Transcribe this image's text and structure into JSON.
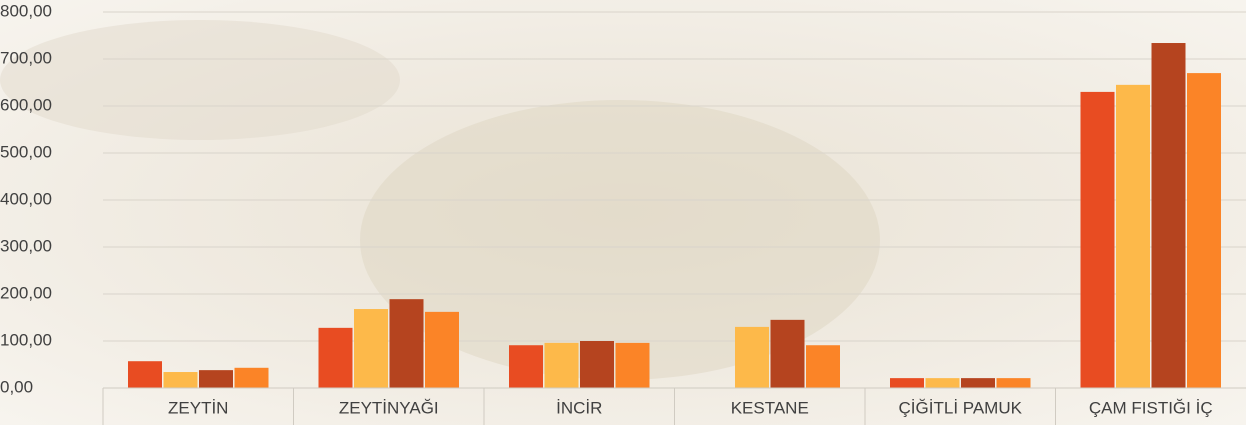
{
  "chart_data": {
    "type": "bar",
    "categories": [
      "ZEYTİN",
      "ZEYTİNYAĞI",
      "İNCİR",
      "KESTANE",
      "ÇİĞİTLİ PAMUK",
      "ÇAM FISTIĞI İÇ"
    ],
    "series": [
      {
        "color": "#e84c22",
        "values": [
          57,
          128,
          91,
          null,
          21,
          630
        ]
      },
      {
        "color": "#fdb94a",
        "values": [
          34,
          168,
          96,
          130,
          21,
          645
        ]
      },
      {
        "color": "#b5441f",
        "values": [
          38,
          189,
          100,
          145,
          21,
          734
        ]
      },
      {
        "color": "#fb8427",
        "values": [
          43,
          162,
          96,
          91,
          21,
          670
        ]
      }
    ],
    "ylim": [
      0,
      800
    ],
    "yticks": [
      {
        "value": 0,
        "label": "0,00"
      },
      {
        "value": 100,
        "label": "100,00"
      },
      {
        "value": 200,
        "label": "200,00"
      },
      {
        "value": 300,
        "label": "300,00"
      },
      {
        "value": 400,
        "label": "400,00"
      },
      {
        "value": 500,
        "label": "500,00"
      },
      {
        "value": 600,
        "label": "600,00"
      },
      {
        "value": 700,
        "label": "700,00"
      },
      {
        "value": 800,
        "label": "800,00"
      }
    ],
    "grid": true
  }
}
